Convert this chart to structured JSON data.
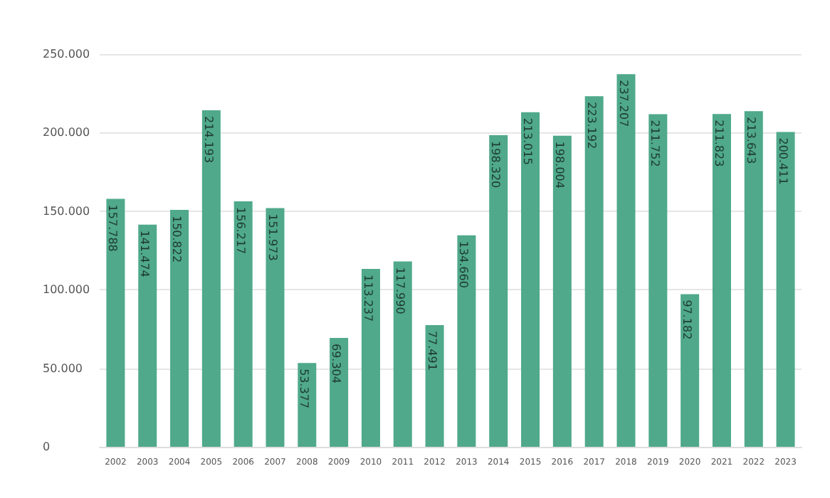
{
  "chart_data": {
    "type": "bar",
    "categories": [
      "2002",
      "2003",
      "2004",
      "2005",
      "2006",
      "2007",
      "2008",
      "2009",
      "2010",
      "2011",
      "2012",
      "2013",
      "2014",
      "2015",
      "2016",
      "2017",
      "2018",
      "2019",
      "2020",
      "2021",
      "2022",
      "2023"
    ],
    "values": [
      157788,
      141474,
      150822,
      214193,
      156217,
      151973,
      53377,
      69304,
      113237,
      117990,
      77491,
      134660,
      198320,
      213015,
      198004,
      223192,
      237207,
      211752,
      97182,
      211823,
      213643,
      200411
    ],
    "value_labels": [
      "157.788",
      "141.474",
      "150.822",
      "214.193",
      "156.217",
      "151.973",
      "53.377",
      "69.304",
      "113.237",
      "117.990",
      "77.491",
      "134.660",
      "198.320",
      "213.015",
      "198.004",
      "223.192",
      "237.207",
      "211.752",
      "97.182",
      "211.823",
      "213.643",
      "200.411"
    ],
    "color": "#4fa98a",
    "ylim": [
      0,
      250000
    ],
    "yticks": [
      {
        "value": 0,
        "label": "0"
      },
      {
        "value": 50000,
        "label": "50.000"
      },
      {
        "value": 100000,
        "label": "100.000"
      },
      {
        "value": 150000,
        "label": "150.000"
      },
      {
        "value": 200000,
        "label": "200.000"
      },
      {
        "value": 250000,
        "label": "250.000"
      }
    ],
    "grid": "y"
  }
}
